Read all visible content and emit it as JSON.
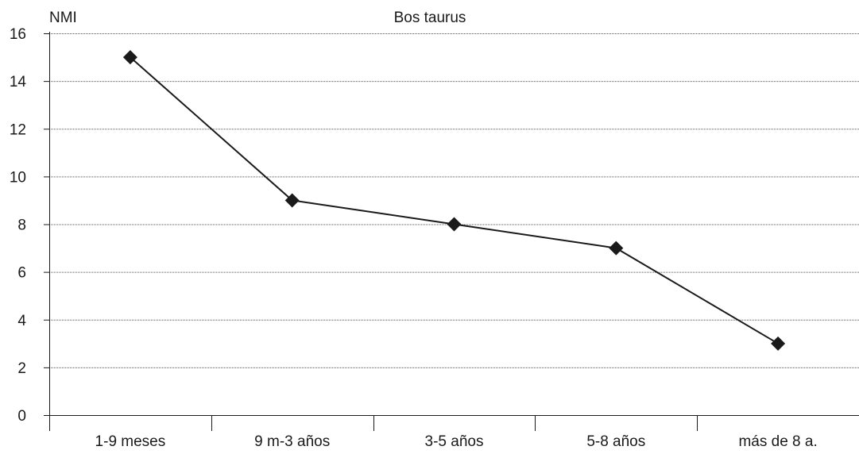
{
  "chart_data": {
    "type": "line",
    "title": "Bos taurus",
    "ylabel": "NMI",
    "xlabel": "",
    "categories": [
      "1-9 meses",
      "9 m-3 años",
      "3-5 años",
      "5-8 años",
      "más de 8 a."
    ],
    "series": [
      {
        "values": [
          15,
          9,
          8,
          7,
          3
        ]
      }
    ],
    "ylim": [
      0,
      16
    ],
    "yticks": [
      0,
      2,
      4,
      6,
      8,
      10,
      12,
      14,
      16
    ],
    "grid": true,
    "legend": "none",
    "colors": {
      "line": "#1a1a1a",
      "marker": "#1a1a1a",
      "grid": "#555555",
      "axis": "#1a1a1a"
    }
  }
}
